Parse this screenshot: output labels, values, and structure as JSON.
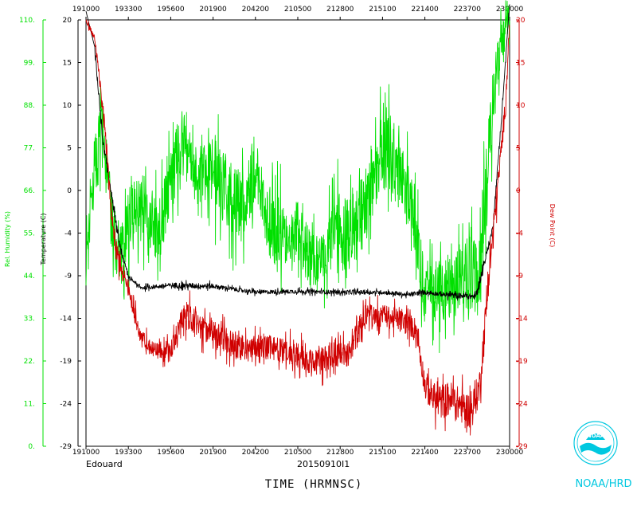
{
  "chart_data": {
    "type": "line",
    "xlabel": "TIME (HRMNSC)",
    "x_ticks": [
      "191000",
      "193300",
      "195600",
      "201900",
      "204200",
      "210500",
      "212800",
      "215100",
      "221400",
      "223700",
      "230000"
    ],
    "left_outer_axis": {
      "label": "Rel. Humidity (%)",
      "ticks": [
        "0.",
        "11.",
        "22.",
        "33.",
        "44.",
        "55.",
        "66.",
        "77.",
        "88.",
        "99.",
        "110."
      ],
      "range": [
        0,
        110
      ],
      "color": "#00e000"
    },
    "left_inner_axis": {
      "label": "Temperature (C)",
      "ticks": [
        "-29",
        "-24",
        "-19",
        "-14",
        "-9",
        "-4",
        "0",
        "5",
        "10",
        "15",
        "20"
      ],
      "range": [
        -29,
        20
      ],
      "color": "#000000"
    },
    "right_axis": {
      "label": "Dew Point (C)",
      "ticks": [
        "-29",
        "-24",
        "-19",
        "-14",
        "-9",
        "-4",
        "0",
        "5",
        "10",
        "15",
        "20"
      ],
      "range": [
        -29,
        20
      ],
      "color": "#d00000"
    },
    "storm": "Edouard",
    "date": "20150910I1",
    "series": [
      {
        "key": "humidity",
        "color": "#00e000",
        "axis": "rh",
        "keypoints": [
          [
            0,
            49
          ],
          [
            0.02,
            70
          ],
          [
            0.04,
            82
          ],
          [
            0.06,
            58
          ],
          [
            0.08,
            48
          ],
          [
            0.1,
            58
          ],
          [
            0.14,
            62
          ],
          [
            0.17,
            54
          ],
          [
            0.2,
            68
          ],
          [
            0.23,
            80
          ],
          [
            0.26,
            70
          ],
          [
            0.3,
            72
          ],
          [
            0.33,
            66
          ],
          [
            0.37,
            62
          ],
          [
            0.4,
            72
          ],
          [
            0.43,
            58
          ],
          [
            0.46,
            54
          ],
          [
            0.5,
            56
          ],
          [
            0.53,
            48
          ],
          [
            0.56,
            48
          ],
          [
            0.59,
            56
          ],
          [
            0.62,
            54
          ],
          [
            0.66,
            62
          ],
          [
            0.7,
            78
          ],
          [
            0.74,
            72
          ],
          [
            0.77,
            62
          ],
          [
            0.8,
            40
          ],
          [
            0.84,
            40
          ],
          [
            0.88,
            42
          ],
          [
            0.9,
            48
          ],
          [
            0.93,
            42
          ],
          [
            0.94,
            62
          ],
          [
            0.96,
            90
          ],
          [
            0.98,
            104
          ],
          [
            1,
            110
          ]
        ],
        "noise": [
          6,
          12,
          10,
          10,
          10,
          12,
          10,
          10,
          10,
          8,
          10,
          12,
          12,
          12,
          10,
          12,
          10,
          10,
          8,
          10,
          12,
          12,
          12,
          14,
          10,
          10,
          10,
          10,
          12,
          14,
          14,
          12,
          8,
          6,
          4
        ]
      },
      {
        "key": "temperature",
        "color": "#000000",
        "axis": "temp",
        "keypoints": [
          [
            0,
            21
          ],
          [
            0.02,
            17
          ],
          [
            0.04,
            6
          ],
          [
            0.06,
            0
          ],
          [
            0.08,
            -6
          ],
          [
            0.1,
            -9.5
          ],
          [
            0.13,
            -10.8
          ],
          [
            0.2,
            -10.5
          ],
          [
            0.3,
            -10.6
          ],
          [
            0.4,
            -11.3
          ],
          [
            0.5,
            -11.2
          ],
          [
            0.6,
            -11.3
          ],
          [
            0.7,
            -11.3
          ],
          [
            0.76,
            -11.6
          ],
          [
            0.8,
            -11.3
          ],
          [
            0.85,
            -11.6
          ],
          [
            0.92,
            -11.8
          ],
          [
            0.94,
            -8
          ],
          [
            0.96,
            -4
          ],
          [
            0.98,
            8
          ],
          [
            1,
            22
          ]
        ],
        "noise": [
          0,
          0.6,
          0.6,
          0.5,
          0.4,
          0.3,
          0.3,
          0.4,
          0.3,
          0.3,
          0.3,
          0.3,
          0.3,
          0.3,
          0.3,
          0.4,
          0.6,
          0.5,
          0.5,
          0.4,
          0
        ]
      },
      {
        "key": "dewpoint",
        "color": "#d00000",
        "axis": "temp",
        "keypoints": [
          [
            0,
            20
          ],
          [
            0.02,
            18
          ],
          [
            0.04,
            10
          ],
          [
            0.06,
            -2
          ],
          [
            0.07,
            -6
          ],
          [
            0.08,
            -8
          ],
          [
            0.1,
            -11
          ],
          [
            0.13,
            -16.5
          ],
          [
            0.16,
            -18
          ],
          [
            0.2,
            -18
          ],
          [
            0.23,
            -13.5
          ],
          [
            0.26,
            -15
          ],
          [
            0.3,
            -16
          ],
          [
            0.34,
            -17
          ],
          [
            0.38,
            -18
          ],
          [
            0.42,
            -17.5
          ],
          [
            0.46,
            -18
          ],
          [
            0.5,
            -18.5
          ],
          [
            0.54,
            -19.5
          ],
          [
            0.58,
            -18.5
          ],
          [
            0.62,
            -18.5
          ],
          [
            0.66,
            -14
          ],
          [
            0.7,
            -14
          ],
          [
            0.74,
            -14.5
          ],
          [
            0.78,
            -15.5
          ],
          [
            0.8,
            -22
          ],
          [
            0.83,
            -24
          ],
          [
            0.86,
            -23.5
          ],
          [
            0.89,
            -24.5
          ],
          [
            0.91,
            -25
          ],
          [
            0.93,
            -22
          ],
          [
            0.95,
            -10
          ],
          [
            0.97,
            0
          ],
          [
            0.99,
            10
          ],
          [
            1,
            20
          ]
        ],
        "noise": [
          0.4,
          0.8,
          1.2,
          1.5,
          1.5,
          1.5,
          1.2,
          1.2,
          1.2,
          1.5,
          2,
          1.8,
          1.8,
          1.8,
          1.8,
          1.8,
          1.8,
          1.8,
          2,
          1.8,
          1.8,
          1.6,
          1.6,
          1.6,
          1.8,
          2.2,
          2.5,
          2.5,
          2.5,
          2.5,
          2.2,
          2,
          1.5,
          1,
          0.5
        ]
      }
    ]
  },
  "logo": {
    "name": "noaa-logo-icon",
    "label": "NOAA/HRD",
    "inner_text": "NOAA"
  }
}
